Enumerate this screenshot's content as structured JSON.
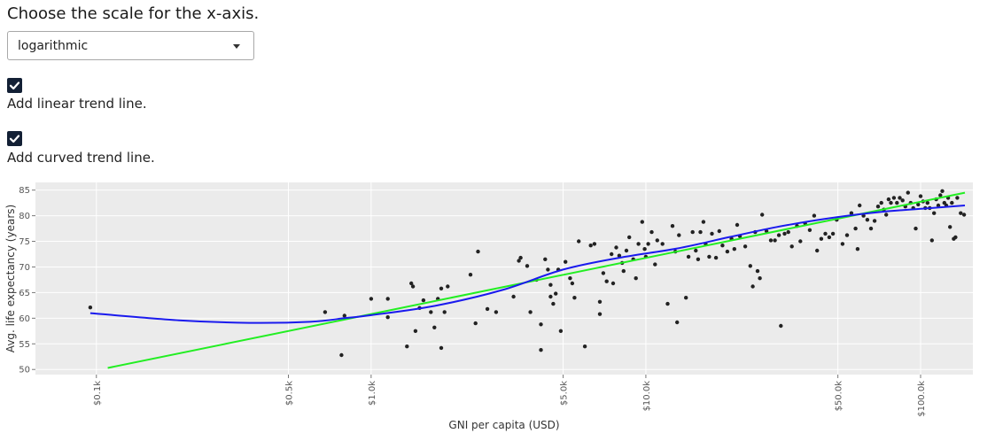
{
  "controls": {
    "prompt": "Choose the scale for the x-axis.",
    "scale_select": {
      "value": "logarithmic"
    },
    "linear_trend": {
      "label": "Add linear trend line.",
      "checked": true
    },
    "curved_trend": {
      "label": "Add curved trend line.",
      "checked": true
    }
  },
  "colors": {
    "points": "#222222",
    "linear_trend": "#22ee22",
    "curved_trend": "#1a1aee",
    "plot_background": "#ebebeb",
    "checkbox": "#132035"
  },
  "chart_data": {
    "type": "scatter",
    "xscale": "log",
    "xlabel": "GNI per capita (USD)",
    "ylabel": "Avg. life expectancy (years)",
    "xlim": [
      60,
      155000
    ],
    "ylim": [
      49,
      86.5
    ],
    "x_ticks": [
      {
        "value": 100,
        "label": "$0.1k"
      },
      {
        "value": 500,
        "label": "$0.5k"
      },
      {
        "value": 1000,
        "label": "$1.0k"
      },
      {
        "value": 5000,
        "label": "$5.0k"
      },
      {
        "value": 10000,
        "label": "$10.0k"
      },
      {
        "value": 50000,
        "label": "$50.0k"
      },
      {
        "value": 100000,
        "label": "$100.0k"
      }
    ],
    "y_ticks": [
      50,
      55,
      60,
      65,
      70,
      75,
      80,
      85
    ],
    "grid": true,
    "points": [
      [
        95,
        62.1
      ],
      [
        680,
        61.2
      ],
      [
        780,
        52.8
      ],
      [
        800,
        60.5
      ],
      [
        1000,
        63.8
      ],
      [
        1150,
        63.8
      ],
      [
        1150,
        60.2
      ],
      [
        1350,
        54.5
      ],
      [
        1400,
        66.8
      ],
      [
        1420,
        66.2
      ],
      [
        1450,
        57.5
      ],
      [
        1500,
        62
      ],
      [
        1550,
        63.5
      ],
      [
        1650,
        61.2
      ],
      [
        1700,
        58.2
      ],
      [
        1750,
        63.8
      ],
      [
        1800,
        54.2
      ],
      [
        1800,
        65.8
      ],
      [
        1850,
        61.2
      ],
      [
        1900,
        66.2
      ],
      [
        2300,
        68.5
      ],
      [
        2400,
        59
      ],
      [
        2450,
        73
      ],
      [
        2650,
        61.8
      ],
      [
        2850,
        61.2
      ],
      [
        3300,
        64.2
      ],
      [
        3450,
        71.2
      ],
      [
        3500,
        71.8
      ],
      [
        3700,
        70.2
      ],
      [
        3800,
        61.2
      ],
      [
        4000,
        67.5
      ],
      [
        4150,
        53.8
      ],
      [
        4150,
        58.8
      ],
      [
        4300,
        71.5
      ],
      [
        4400,
        69.5
      ],
      [
        4500,
        66.5
      ],
      [
        4500,
        64.2
      ],
      [
        4600,
        62.8
      ],
      [
        4700,
        64.8
      ],
      [
        4800,
        69.5
      ],
      [
        4900,
        57.5
      ],
      [
        5100,
        71
      ],
      [
        5300,
        67.8
      ],
      [
        5400,
        66.8
      ],
      [
        5500,
        64
      ],
      [
        5700,
        75
      ],
      [
        6000,
        54.5
      ],
      [
        6300,
        74.2
      ],
      [
        6500,
        74.5
      ],
      [
        6800,
        63.2
      ],
      [
        6800,
        60.8
      ],
      [
        7000,
        68.8
      ],
      [
        7200,
        67.2
      ],
      [
        7500,
        72.5
      ],
      [
        7600,
        66.8
      ],
      [
        7800,
        73.8
      ],
      [
        8000,
        72.2
      ],
      [
        8200,
        70.8
      ],
      [
        8300,
        69.2
      ],
      [
        8500,
        73.2
      ],
      [
        8700,
        75.8
      ],
      [
        9000,
        71.5
      ],
      [
        9200,
        67.8
      ],
      [
        9400,
        74.5
      ],
      [
        9700,
        78.8
      ],
      [
        9900,
        73.5
      ],
      [
        10000,
        72
      ],
      [
        10200,
        74.5
      ],
      [
        10500,
        76.8
      ],
      [
        10800,
        70.5
      ],
      [
        11000,
        75.2
      ],
      [
        11500,
        74.5
      ],
      [
        12000,
        62.8
      ],
      [
        12500,
        78
      ],
      [
        12800,
        73
      ],
      [
        13000,
        59.2
      ],
      [
        13200,
        76.2
      ],
      [
        14000,
        64
      ],
      [
        14300,
        72
      ],
      [
        14800,
        76.8
      ],
      [
        15200,
        73.2
      ],
      [
        15500,
        71.5
      ],
      [
        15800,
        76.8
      ],
      [
        16200,
        78.8
      ],
      [
        16500,
        74.5
      ],
      [
        17000,
        72
      ],
      [
        17400,
        76.5
      ],
      [
        18000,
        71.8
      ],
      [
        18500,
        77
      ],
      [
        19000,
        74.2
      ],
      [
        19800,
        73
      ],
      [
        20500,
        75.5
      ],
      [
        21000,
        73.5
      ],
      [
        21500,
        78.2
      ],
      [
        22000,
        76
      ],
      [
        23000,
        74
      ],
      [
        24000,
        70.2
      ],
      [
        24500,
        66.2
      ],
      [
        25000,
        76.8
      ],
      [
        25500,
        69.2
      ],
      [
        26000,
        67.8
      ],
      [
        26500,
        80.2
      ],
      [
        27500,
        77
      ],
      [
        28500,
        75.2
      ],
      [
        29500,
        75.2
      ],
      [
        30500,
        76.2
      ],
      [
        31000,
        58.5
      ],
      [
        32000,
        76.5
      ],
      [
        33000,
        76.8
      ],
      [
        34000,
        74
      ],
      [
        35500,
        78
      ],
      [
        36500,
        75
      ],
      [
        38000,
        78.5
      ],
      [
        39500,
        77.2
      ],
      [
        41000,
        80
      ],
      [
        42000,
        73.2
      ],
      [
        43500,
        75.5
      ],
      [
        45000,
        76.5
      ],
      [
        46500,
        75.8
      ],
      [
        48000,
        76.5
      ],
      [
        49500,
        79.2
      ],
      [
        52000,
        74.5
      ],
      [
        54000,
        76.2
      ],
      [
        56000,
        80.5
      ],
      [
        58000,
        77.5
      ],
      [
        59000,
        73.5
      ],
      [
        60000,
        82
      ],
      [
        62000,
        80
      ],
      [
        64000,
        79.2
      ],
      [
        66000,
        77.5
      ],
      [
        68000,
        79
      ],
      [
        70000,
        81.8
      ],
      [
        72000,
        82.5
      ],
      [
        73500,
        81.2
      ],
      [
        75000,
        80.2
      ],
      [
        76500,
        83.2
      ],
      [
        78000,
        82.5
      ],
      [
        80000,
        83.5
      ],
      [
        82000,
        82.5
      ],
      [
        84000,
        83.5
      ],
      [
        86000,
        83
      ],
      [
        88000,
        81.8
      ],
      [
        90000,
        84.5
      ],
      [
        92000,
        82.5
      ],
      [
        94000,
        81.5
      ],
      [
        96000,
        77.5
      ],
      [
        98000,
        82.2
      ],
      [
        100000,
        83.8
      ],
      [
        102000,
        82.8
      ],
      [
        104000,
        81.5
      ],
      [
        106000,
        82.5
      ],
      [
        108000,
        81.5
      ],
      [
        110000,
        75.2
      ],
      [
        112000,
        80.5
      ],
      [
        114000,
        83.2
      ],
      [
        116000,
        82
      ],
      [
        118000,
        84
      ],
      [
        120000,
        84.8
      ],
      [
        122000,
        82.5
      ],
      [
        124000,
        82
      ],
      [
        126000,
        83.5
      ],
      [
        128000,
        77.8
      ],
      [
        130000,
        82.5
      ],
      [
        132000,
        75.5
      ],
      [
        134000,
        75.8
      ],
      [
        136000,
        83.5
      ],
      [
        140000,
        80.5
      ],
      [
        144000,
        80.2
      ]
    ],
    "linear_trend": [
      [
        110,
        50.3
      ],
      [
        145000,
        84.5
      ]
    ],
    "curved_trend": [
      [
        95,
        61
      ],
      [
        200,
        59.6
      ],
      [
        360,
        59.1
      ],
      [
        600,
        59.3
      ],
      [
        800,
        60
      ],
      [
        1000,
        60.6
      ],
      [
        1700,
        62.4
      ],
      [
        3000,
        65.5
      ],
      [
        5000,
        69.5
      ],
      [
        8000,
        71.8
      ],
      [
        13000,
        73.6
      ],
      [
        20000,
        75.8
      ],
      [
        30000,
        77.8
      ],
      [
        45000,
        79.4
      ],
      [
        70000,
        80.7
      ],
      [
        110000,
        81.5
      ],
      [
        145000,
        82
      ]
    ]
  }
}
